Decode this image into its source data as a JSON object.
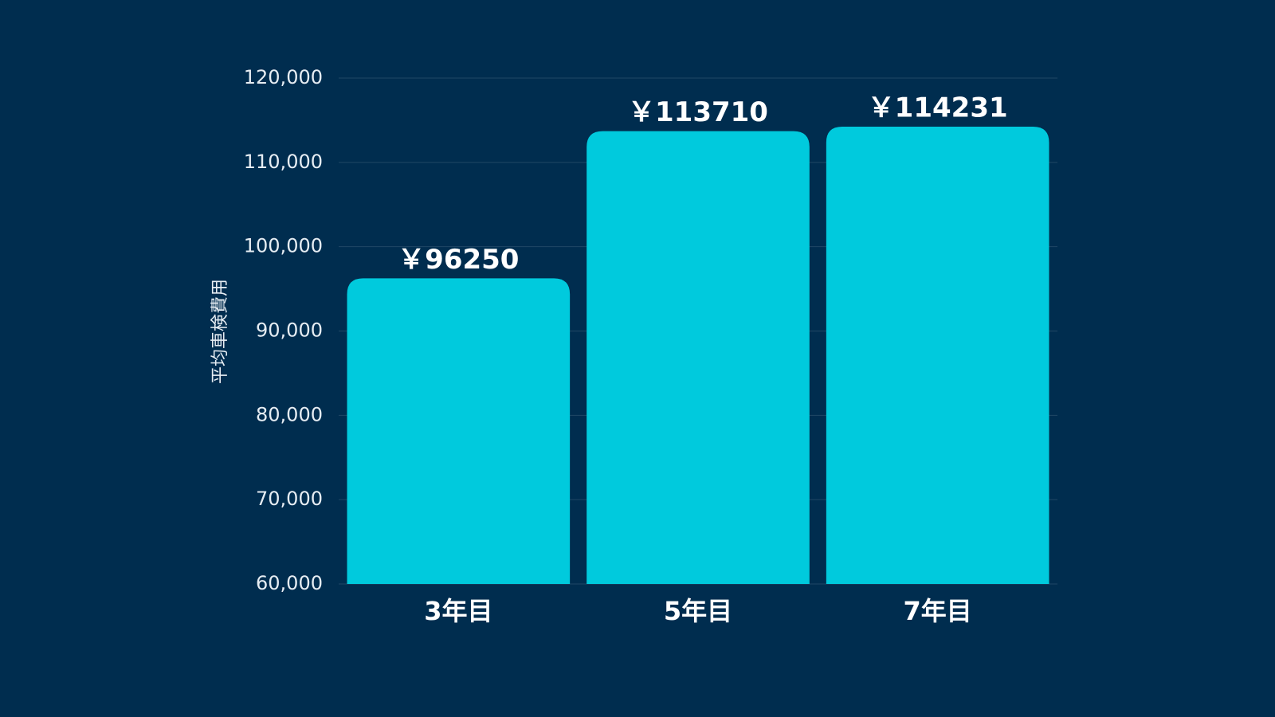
{
  "chart_data": {
    "type": "bar",
    "y_label": "平均車検費用",
    "categories": [
      "3年目",
      "5年目",
      "7年目"
    ],
    "values": [
      96250,
      113710,
      114231
    ],
    "value_labels": [
      "￥96250",
      "￥113710",
      "￥114231"
    ],
    "color": "#00cadd",
    "ylim": [
      60000,
      120000
    ],
    "yticks": [
      {
        "value": 60000,
        "label": "60,000"
      },
      {
        "value": 70000,
        "label": "70,000"
      },
      {
        "value": 80000,
        "label": "80,000"
      },
      {
        "value": 90000,
        "label": "90,000"
      },
      {
        "value": 100000,
        "label": "100,000"
      },
      {
        "value": 110000,
        "label": "110,000"
      },
      {
        "value": 120000,
        "label": "120,000"
      }
    ],
    "grid": true
  }
}
